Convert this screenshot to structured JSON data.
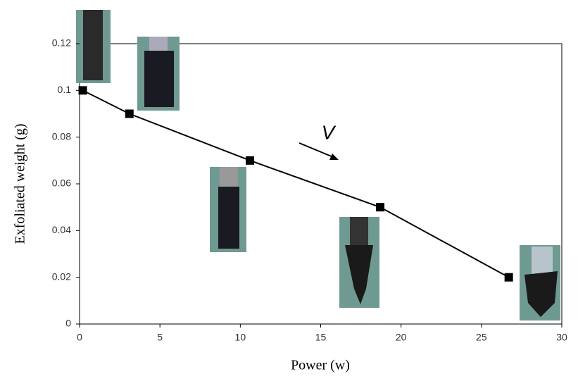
{
  "chart_data": {
    "type": "line",
    "x_label": "Power (w)",
    "y_label": "Exfoliated weight (g)",
    "annotation": "V",
    "x": [
      0.2,
      3.1,
      10.6,
      18.7,
      26.7
    ],
    "series": [
      {
        "color": "#000000",
        "values": [
          0.1,
          0.09,
          0.07,
          0.05,
          0.02
        ]
      }
    ],
    "xlim": [
      0,
      30
    ],
    "xticks": [
      0,
      5,
      10,
      15,
      20,
      25,
      30
    ],
    "ylim": [
      0,
      0.12
    ],
    "yticks": [
      0,
      0.02,
      0.04,
      0.06,
      0.08,
      0.1,
      0.12
    ],
    "grid": false
  }
}
